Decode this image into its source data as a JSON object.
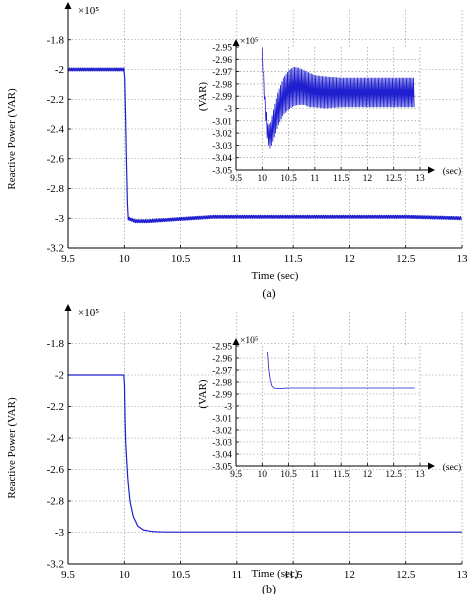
{
  "chart_data": [
    {
      "type": "line",
      "panel": "a",
      "caption": "(a)",
      "xlabel": "Time (sec)",
      "ylabel": "Reactive Power (VAR)",
      "exponent_label": "×10⁵",
      "xlim": [
        9.5,
        13
      ],
      "ylim": [
        -3.2,
        -1.6
      ],
      "x_ticks": [
        "9.5",
        "10",
        "10.5",
        "11",
        "11.5",
        "12",
        "12.5",
        "13"
      ],
      "y_ticks": [
        "-1.8",
        "-2",
        "-2.2",
        "-2.4",
        "-2.6",
        "-2.8",
        "-3",
        "-3.2"
      ],
      "color": "#1f1fd0",
      "series": [
        {
          "x": [
            9.5,
            9.8,
            10.0,
            10.001,
            10.03,
            10.1,
            10.2,
            10.4,
            10.6,
            10.8,
            11.0,
            11.5,
            12.0,
            12.5,
            13.0
          ],
          "y": [
            -2.0,
            -2.0,
            -2.0,
            -1.95,
            -3.0,
            -3.02,
            -3.02,
            -3.01,
            -3.0,
            -2.99,
            -2.99,
            -2.99,
            -2.99,
            -2.99,
            -3.0
          ],
          "oscillation_amplitude": 0.012
        }
      ],
      "inset": {
        "xlabel": "(sec)",
        "ylabel": "(VAR)",
        "exponent_label": "×10⁵",
        "xlim": [
          9.5,
          13
        ],
        "ylim": [
          -3.05,
          -2.95
        ],
        "x_ticks": [
          "9.5",
          "10",
          "10.5",
          "11",
          "11.5",
          "12",
          "12.5",
          "13"
        ],
        "y_ticks": [
          "-2.95",
          "-2.96",
          "-2.97",
          "-2.98",
          "-2.99",
          "-3",
          "-3.01",
          "-3.02",
          "-3.03",
          "-3.04",
          "-3.05"
        ],
        "series": [
          {
            "x": [
              10.0,
              10.05,
              10.1,
              10.15,
              10.2,
              10.3,
              10.4,
              10.5,
              10.6,
              10.7,
              10.8,
              10.9,
              11.0,
              11.2,
              11.5,
              12.0,
              12.5,
              12.9
            ],
            "y": [
              -2.955,
              -2.995,
              -3.02,
              -3.023,
              -3.015,
              -3.0,
              -2.99,
              -2.985,
              -2.982,
              -2.982,
              -2.983,
              -2.985,
              -2.986,
              -2.987,
              -2.987,
              -2.987,
              -2.987,
              -2.987
            ],
            "oscillation_amplitude": [
              0.004,
              0.006,
              0.008,
              0.01,
              0.012,
              0.014,
              0.015,
              0.016,
              0.016,
              0.015,
              0.014,
              0.014,
              0.013,
              0.013,
              0.012,
              0.012,
              0.012,
              0.012
            ]
          }
        ]
      }
    },
    {
      "type": "line",
      "panel": "b",
      "caption": "(b)",
      "xlabel": "Time (sec)",
      "ylabel": "Reactive Power (VAR)",
      "exponent_label": "×10⁵",
      "xlim": [
        9.5,
        13
      ],
      "ylim": [
        -3.2,
        -1.6
      ],
      "x_ticks": [
        "9.5",
        "10",
        "10.5",
        "11",
        "11.5",
        "12",
        "12.5",
        "13"
      ],
      "y_ticks": [
        "-1.8",
        "-2",
        "-2.2",
        "-2.4",
        "-2.6",
        "-2.8",
        "-3",
        "-3.2"
      ],
      "color": "#1f1fd0",
      "series": [
        {
          "x": [
            9.5,
            10.0,
            10.01,
            10.03,
            10.05,
            10.08,
            10.12,
            10.17,
            10.25,
            10.35,
            11.0,
            12.0,
            13.0
          ],
          "y": [
            -2.0,
            -2.0,
            -2.4,
            -2.65,
            -2.8,
            -2.9,
            -2.96,
            -2.985,
            -2.995,
            -2.998,
            -2.998,
            -2.998,
            -2.998
          ]
        }
      ],
      "inset": {
        "xlabel": "(sec)",
        "ylabel": "(VAR)",
        "exponent_label": "×10⁵",
        "xlim": [
          9.5,
          13
        ],
        "ylim": [
          -3.05,
          -2.95
        ],
        "x_ticks": [
          "9.5",
          "10",
          "10.5",
          "11",
          "11.5",
          "12",
          "12.5",
          "13"
        ],
        "y_ticks": [
          "-2.95",
          "-2.96",
          "-2.97",
          "-2.98",
          "-2.99",
          "-3",
          "-3.01",
          "-3.02",
          "-3.03",
          "-3.04",
          "-3.05"
        ],
        "series": [
          {
            "x": [
              10.1,
              10.12,
              10.15,
              10.18,
              10.22,
              10.3,
              10.5,
              11.0,
              12.0,
              12.9
            ],
            "y": [
              -2.955,
              -2.968,
              -2.978,
              -2.983,
              -2.985,
              -2.9855,
              -2.985,
              -2.985,
              -2.985,
              -2.985
            ]
          }
        ]
      }
    }
  ]
}
